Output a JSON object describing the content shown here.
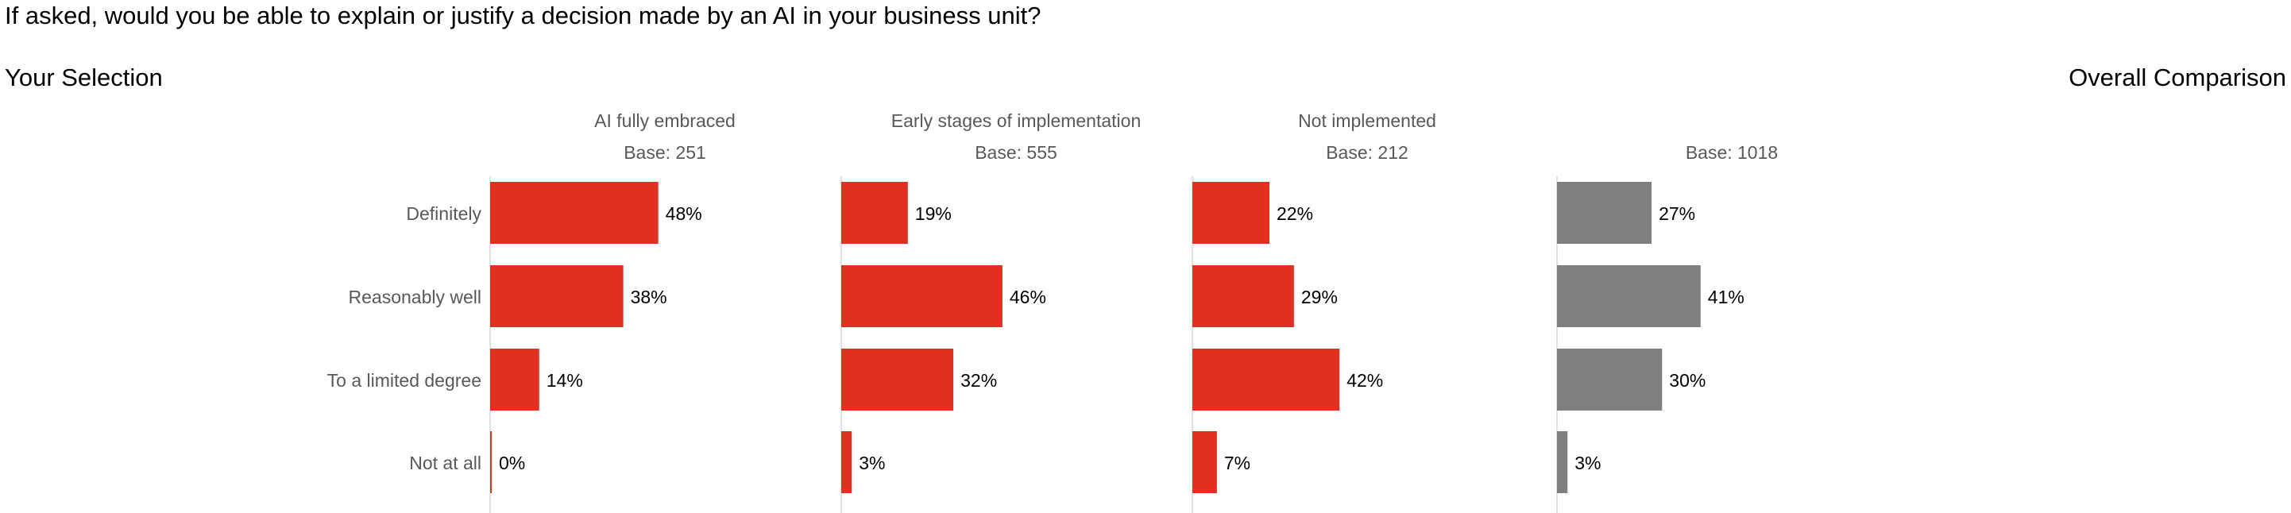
{
  "title": "If asked, would you be able to explain or justify a decision made by an AI in your business unit?",
  "left_header": "Your Selection",
  "right_header": "Overall Comparison",
  "colors": {
    "selection": "#e1301f",
    "overall": "#7f7f7f",
    "axis": "#d9d9d9",
    "category_text": "#595959"
  },
  "chart_data": {
    "type": "bar",
    "orientation": "horizontal",
    "categories": [
      "Definitely",
      "Reasonably well",
      "To a limited degree",
      "Not at all"
    ],
    "unit": "%",
    "series": [
      {
        "name": "AI fully embraced",
        "base": "Base: 251",
        "values": [
          48,
          38,
          14,
          0
        ],
        "group": "selection"
      },
      {
        "name": "Early stages of implementation",
        "base": "Base: 555",
        "values": [
          19,
          46,
          32,
          3
        ],
        "group": "selection"
      },
      {
        "name": "Not implemented",
        "base": "Base: 212",
        "values": [
          22,
          29,
          42,
          7
        ],
        "group": "selection"
      },
      {
        "name": "",
        "base": "Base: 1018",
        "values": [
          27,
          41,
          30,
          3
        ],
        "group": "overall"
      }
    ]
  }
}
